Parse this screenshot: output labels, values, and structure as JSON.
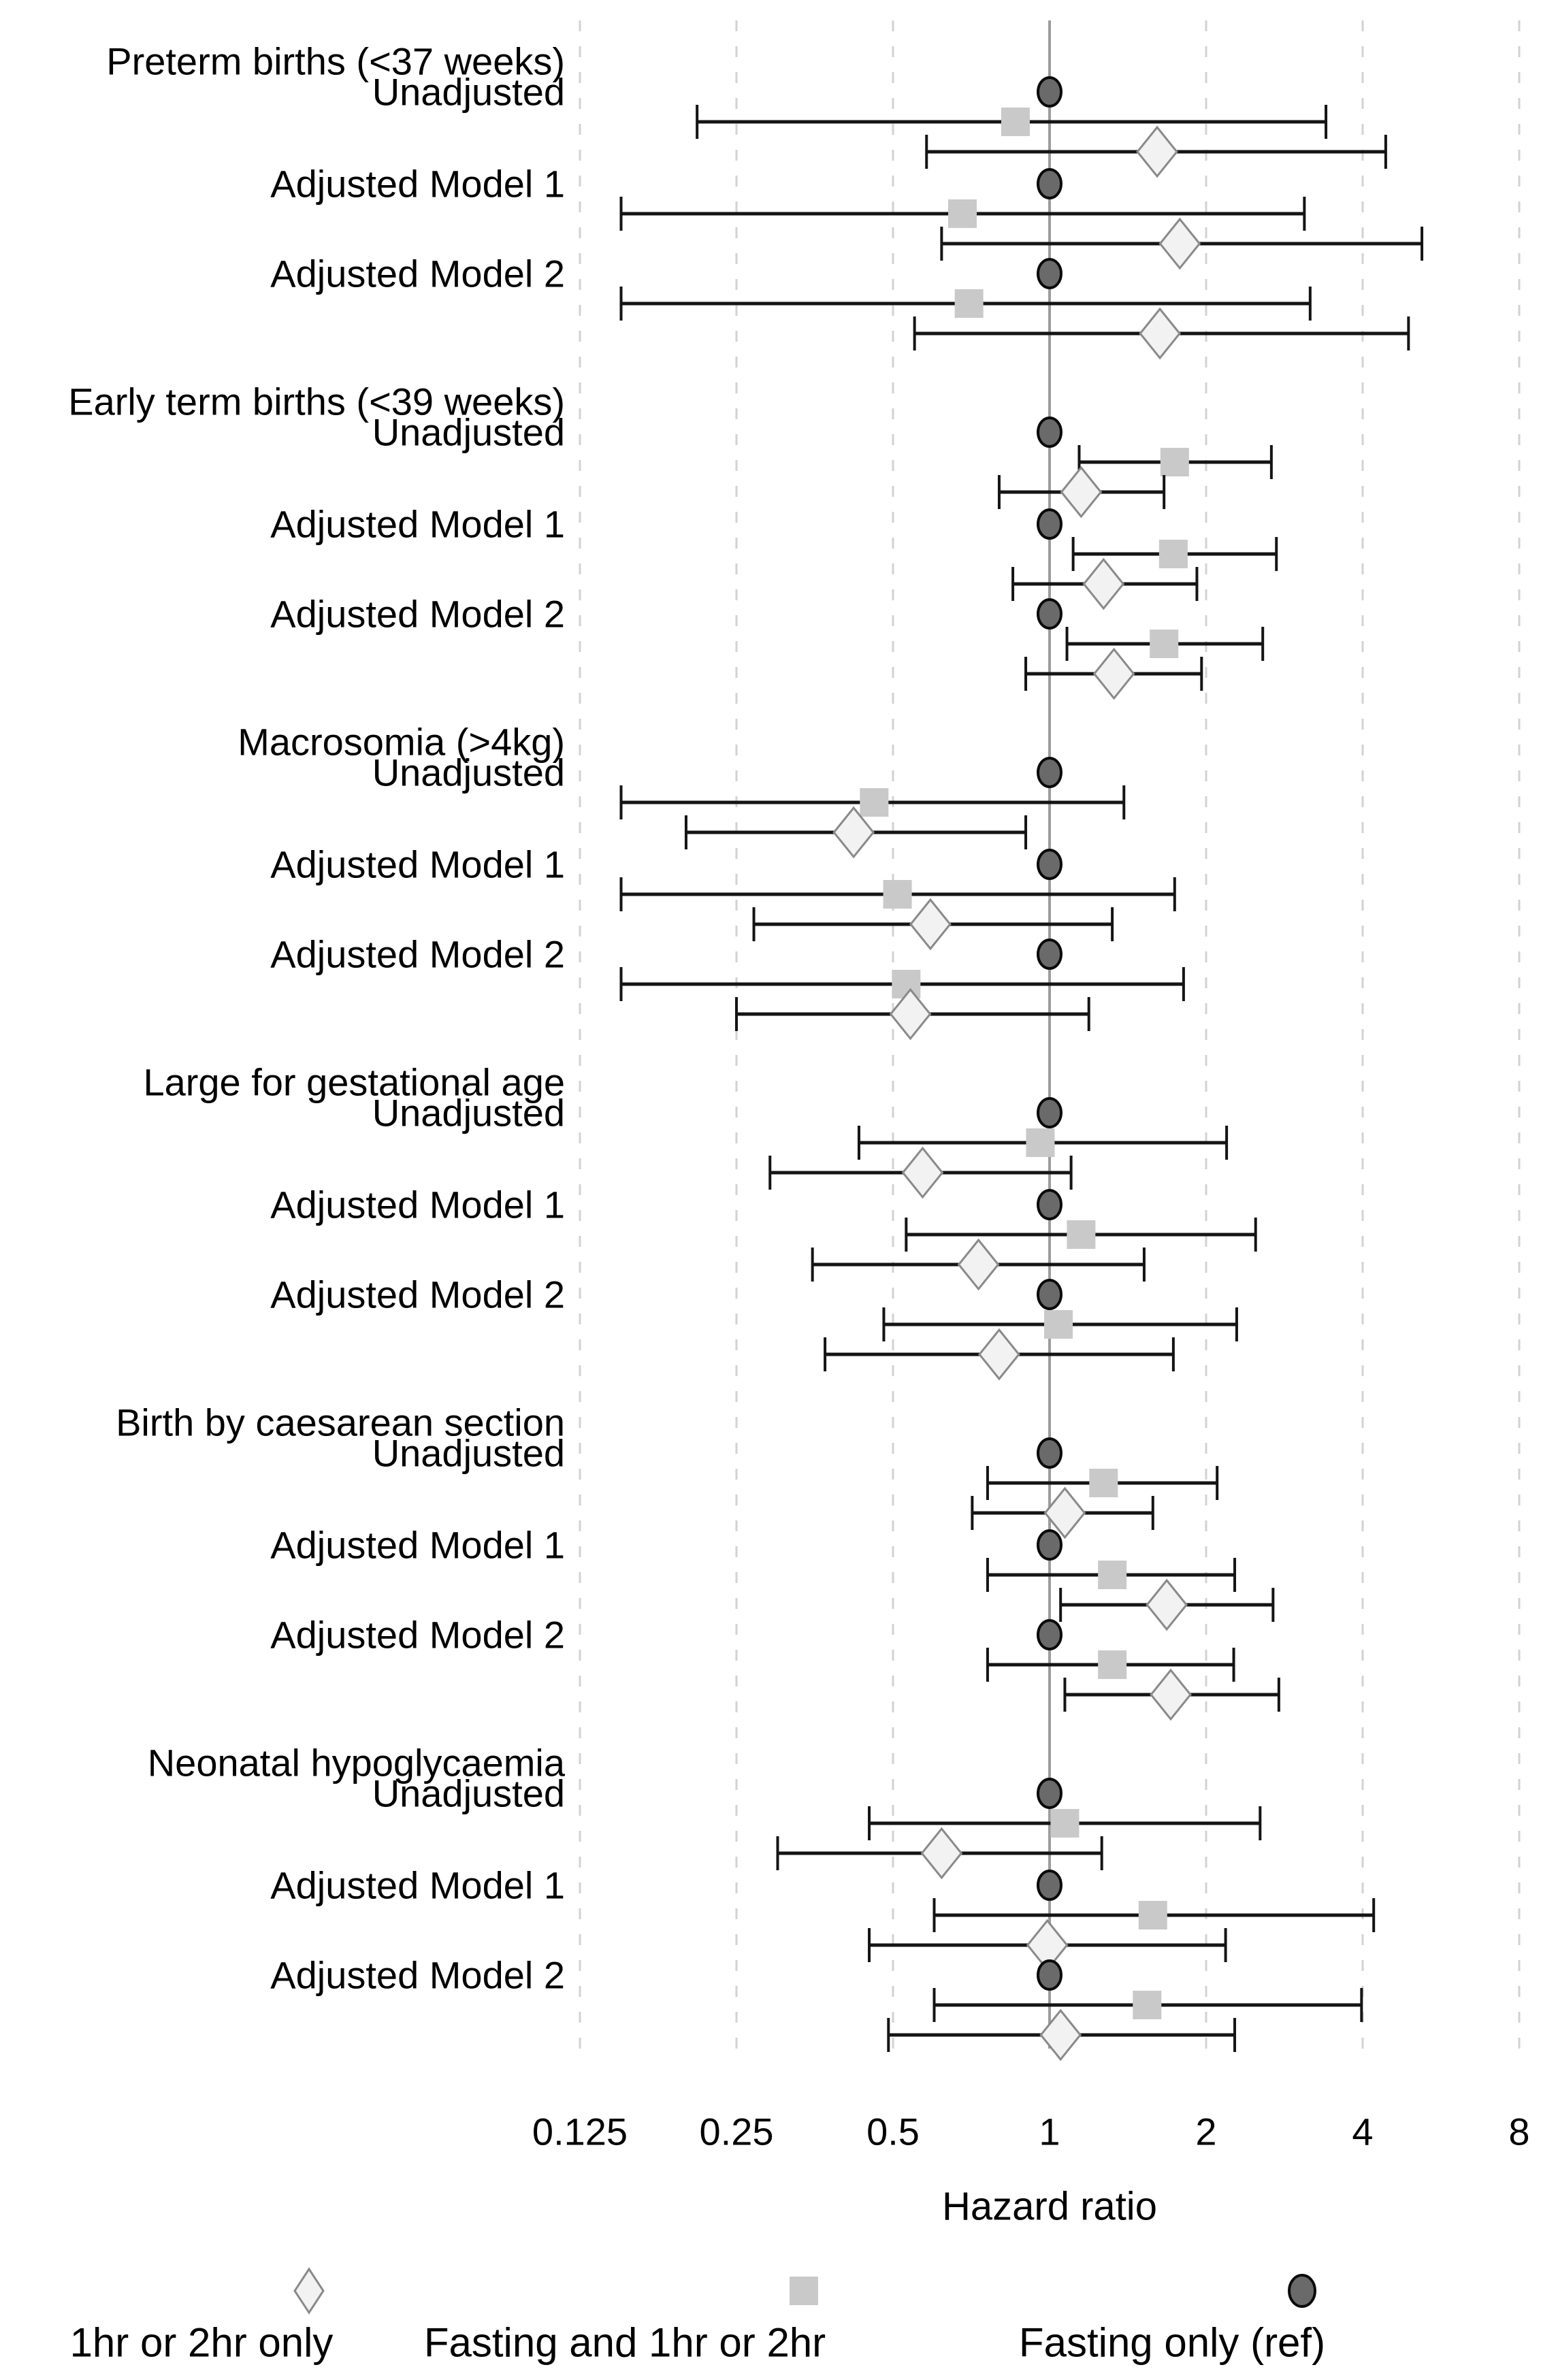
{
  "chart_data": {
    "type": "forest",
    "xlabel": "Hazard ratio",
    "x_scale": "log2",
    "x_ticks": [
      0.125,
      0.25,
      0.5,
      1,
      2,
      4,
      8
    ],
    "tick_labels": [
      "0.125",
      "0.25",
      "0.5",
      "1",
      "2",
      "4",
      "8"
    ],
    "ref_value": 1,
    "grid": "dashed-vertical",
    "legend_position": "bottom",
    "legend": [
      {
        "label": "1hr or 2hr only",
        "marker": "diamond"
      },
      {
        "label": "Fasting and 1hr or 2hr",
        "marker": "square"
      },
      {
        "label": "Fasting only (ref)",
        "marker": "circle"
      }
    ],
    "colors": {
      "circle_fill": "#6a6a6a",
      "circle_stroke": "#0a0a0a",
      "square_fill": "#c9c9c9",
      "diamond_fill": "#f2f2f2",
      "diamond_stroke": "#8a8a8a",
      "ci_line": "#141414",
      "grid_line": "#d2d2d2",
      "ref_line": "#9c9c9c"
    },
    "groups": [
      {
        "label": "Preterm births (<37 weeks)",
        "models": [
          {
            "label": "Unadjusted",
            "rows": [
              {
                "series": "Fasting only (ref)",
                "marker": "circle",
                "hr": 1.0
              },
              {
                "series": "Fasting and 1hr or 2hr",
                "marker": "square",
                "hr": 0.86,
                "lo": 0.21,
                "hi": 3.4
              },
              {
                "series": "1hr or 2hr only",
                "marker": "diamond",
                "hr": 1.61,
                "lo": 0.58,
                "hi": 4.43
              }
            ]
          },
          {
            "label": "Adjusted Model 1",
            "rows": [
              {
                "series": "Fasting only (ref)",
                "marker": "circle",
                "hr": 1.0
              },
              {
                "series": "Fasting and 1hr or 2hr",
                "marker": "square",
                "hr": 0.68,
                "lo": 0.15,
                "hi": 3.09
              },
              {
                "series": "1hr or 2hr only",
                "marker": "diamond",
                "hr": 1.78,
                "lo": 0.62,
                "hi": 5.2
              }
            ]
          },
          {
            "label": "Adjusted Model 2",
            "rows": [
              {
                "series": "Fasting only (ref)",
                "marker": "circle",
                "hr": 1.0
              },
              {
                "series": "Fasting and 1hr or 2hr",
                "marker": "square",
                "hr": 0.7,
                "lo": 0.15,
                "hi": 3.17
              },
              {
                "series": "1hr or 2hr only",
                "marker": "diamond",
                "hr": 1.63,
                "lo": 0.55,
                "hi": 4.9
              }
            ]
          }
        ]
      },
      {
        "label": "Early term births (<39 weeks)",
        "models": [
          {
            "label": "Unadjusted",
            "rows": [
              {
                "series": "Fasting only (ref)",
                "marker": "circle",
                "hr": 1.0
              },
              {
                "series": "Fasting and 1hr or 2hr",
                "marker": "square",
                "hr": 1.74,
                "lo": 1.14,
                "hi": 2.67
              },
              {
                "series": "1hr or 2hr only",
                "marker": "diamond",
                "hr": 1.15,
                "lo": 0.8,
                "hi": 1.66
              }
            ]
          },
          {
            "label": "Adjusted Model 1",
            "rows": [
              {
                "series": "Fasting only (ref)",
                "marker": "circle",
                "hr": 1.0
              },
              {
                "series": "Fasting and 1hr or 2hr",
                "marker": "square",
                "hr": 1.73,
                "lo": 1.11,
                "hi": 2.73
              },
              {
                "series": "1hr or 2hr only",
                "marker": "diamond",
                "hr": 1.27,
                "lo": 0.85,
                "hi": 1.92
              }
            ]
          },
          {
            "label": "Adjusted Model 2",
            "rows": [
              {
                "series": "Fasting only (ref)",
                "marker": "circle",
                "hr": 1.0
              },
              {
                "series": "Fasting and 1hr or 2hr",
                "marker": "square",
                "hr": 1.66,
                "lo": 1.08,
                "hi": 2.57
              },
              {
                "series": "1hr or 2hr only",
                "marker": "diamond",
                "hr": 1.33,
                "lo": 0.9,
                "hi": 1.96
              }
            ]
          }
        ]
      },
      {
        "label": "Macrosomia (>4kg)",
        "models": [
          {
            "label": "Unadjusted",
            "rows": [
              {
                "series": "Fasting only (ref)",
                "marker": "circle",
                "hr": 1.0
              },
              {
                "series": "Fasting and 1hr or 2hr",
                "marker": "square",
                "hr": 0.46,
                "lo": 0.15,
                "hi": 1.39
              },
              {
                "series": "1hr or 2hr only",
                "marker": "diamond",
                "hr": 0.42,
                "lo": 0.2,
                "hi": 0.9
              }
            ]
          },
          {
            "label": "Adjusted Model 1",
            "rows": [
              {
                "series": "Fasting only (ref)",
                "marker": "circle",
                "hr": 1.0
              },
              {
                "series": "Fasting and 1hr or 2hr",
                "marker": "square",
                "hr": 0.51,
                "lo": 0.15,
                "hi": 1.74
              },
              {
                "series": "1hr or 2hr only",
                "marker": "diamond",
                "hr": 0.59,
                "lo": 0.27,
                "hi": 1.32
              }
            ]
          },
          {
            "label": "Adjusted Model 2",
            "rows": [
              {
                "series": "Fasting only (ref)",
                "marker": "circle",
                "hr": 1.0
              },
              {
                "series": "Fasting and 1hr or 2hr",
                "marker": "square",
                "hr": 0.53,
                "lo": 0.15,
                "hi": 1.81
              },
              {
                "series": "1hr or 2hr only",
                "marker": "diamond",
                "hr": 0.54,
                "lo": 0.25,
                "hi": 1.19
              }
            ]
          }
        ]
      },
      {
        "label": "Large for gestational age",
        "models": [
          {
            "label": "Unadjusted",
            "rows": [
              {
                "series": "Fasting only (ref)",
                "marker": "circle",
                "hr": 1.0
              },
              {
                "series": "Fasting and 1hr or 2hr",
                "marker": "square",
                "hr": 0.96,
                "lo": 0.43,
                "hi": 2.19
              },
              {
                "series": "1hr or 2hr only",
                "marker": "diamond",
                "hr": 0.57,
                "lo": 0.29,
                "hi": 1.1
              }
            ]
          },
          {
            "label": "Adjusted Model 1",
            "rows": [
              {
                "series": "Fasting only (ref)",
                "marker": "circle",
                "hr": 1.0
              },
              {
                "series": "Fasting and 1hr or 2hr",
                "marker": "square",
                "hr": 1.15,
                "lo": 0.53,
                "hi": 2.49
              },
              {
                "series": "1hr or 2hr only",
                "marker": "diamond",
                "hr": 0.73,
                "lo": 0.35,
                "hi": 1.52
              }
            ]
          },
          {
            "label": "Adjusted Model 2",
            "rows": [
              {
                "series": "Fasting only (ref)",
                "marker": "circle",
                "hr": 1.0
              },
              {
                "series": "Fasting and 1hr or 2hr",
                "marker": "square",
                "hr": 1.04,
                "lo": 0.48,
                "hi": 2.29
              },
              {
                "series": "1hr or 2hr only",
                "marker": "diamond",
                "hr": 0.8,
                "lo": 0.37,
                "hi": 1.73
              }
            ]
          }
        ]
      },
      {
        "label": "Birth by caesarean section",
        "models": [
          {
            "label": "Unadjusted",
            "rows": [
              {
                "series": "Fasting only (ref)",
                "marker": "circle",
                "hr": 1.0
              },
              {
                "series": "Fasting and 1hr or 2hr",
                "marker": "square",
                "hr": 1.27,
                "lo": 0.76,
                "hi": 2.1
              },
              {
                "series": "1hr or 2hr only",
                "marker": "diamond",
                "hr": 1.07,
                "lo": 0.71,
                "hi": 1.58
              }
            ]
          },
          {
            "label": "Adjusted Model 1",
            "rows": [
              {
                "series": "Fasting only (ref)",
                "marker": "circle",
                "hr": 1.0
              },
              {
                "series": "Fasting and 1hr or 2hr",
                "marker": "square",
                "hr": 1.32,
                "lo": 0.76,
                "hi": 2.27
              },
              {
                "series": "1hr or 2hr only",
                "marker": "diamond",
                "hr": 1.68,
                "lo": 1.05,
                "hi": 2.69
              }
            ]
          },
          {
            "label": "Adjusted Model 2",
            "rows": [
              {
                "series": "Fasting only (ref)",
                "marker": "circle",
                "hr": 1.0
              },
              {
                "series": "Fasting and 1hr or 2hr",
                "marker": "square",
                "hr": 1.32,
                "lo": 0.76,
                "hi": 2.26
              },
              {
                "series": "1hr or 2hr only",
                "marker": "diamond",
                "hr": 1.71,
                "lo": 1.07,
                "hi": 2.76
              }
            ]
          }
        ]
      },
      {
        "label": "Neonatal hypoglycaemia",
        "models": [
          {
            "label": "Unadjusted",
            "rows": [
              {
                "series": "Fasting only (ref)",
                "marker": "circle",
                "hr": 1.0
              },
              {
                "series": "Fasting and 1hr or 2hr",
                "marker": "square",
                "hr": 1.07,
                "lo": 0.45,
                "hi": 2.54
              },
              {
                "series": "1hr or 2hr only",
                "marker": "diamond",
                "hr": 0.62,
                "lo": 0.3,
                "hi": 1.26
              }
            ]
          },
          {
            "label": "Adjusted Model 1",
            "rows": [
              {
                "series": "Fasting only (ref)",
                "marker": "circle",
                "hr": 1.0
              },
              {
                "series": "Fasting and 1hr or 2hr",
                "marker": "square",
                "hr": 1.58,
                "lo": 0.6,
                "hi": 4.2
              },
              {
                "series": "1hr or 2hr only",
                "marker": "diamond",
                "hr": 0.99,
                "lo": 0.45,
                "hi": 2.18
              }
            ]
          },
          {
            "label": "Adjusted Model 2",
            "rows": [
              {
                "series": "Fasting only (ref)",
                "marker": "circle",
                "hr": 1.0
              },
              {
                "series": "Fasting and 1hr or 2hr",
                "marker": "square",
                "hr": 1.54,
                "lo": 0.6,
                "hi": 3.98
              },
              {
                "series": "1hr or 2hr only",
                "marker": "diamond",
                "hr": 1.05,
                "lo": 0.49,
                "hi": 2.27
              }
            ]
          }
        ]
      }
    ]
  }
}
